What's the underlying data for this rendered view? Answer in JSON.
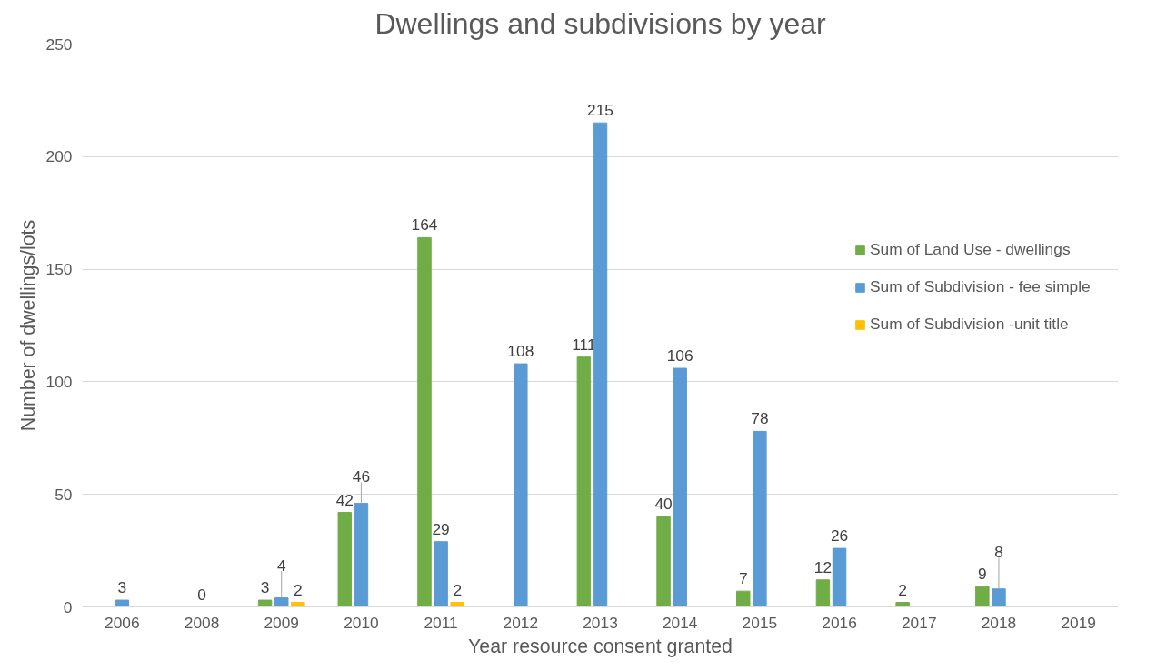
{
  "chart_data": {
    "type": "bar",
    "title": "Dwellings and subdivisions by year",
    "xlabel": "Year resource consent granted",
    "ylabel": "Number of dwellings/lots",
    "categories": [
      "2006",
      "2008",
      "2009",
      "2010",
      "2011",
      "2012",
      "2013",
      "2014",
      "2015",
      "2016",
      "2017",
      "2018",
      "2019"
    ],
    "series": [
      {
        "name": "Sum of Land Use - dwellings",
        "color": "#70ad47",
        "values": [
          null,
          null,
          3,
          42,
          164,
          null,
          111,
          40,
          7,
          12,
          2,
          9,
          null
        ],
        "value_labels": [
          null,
          null,
          "3",
          "42",
          "164",
          null,
          "111",
          "40",
          "7",
          "12",
          "2",
          "9",
          null
        ]
      },
      {
        "name": "Sum of Subdivision - fee simple",
        "color": "#5b9bd5",
        "values": [
          3,
          0,
          4,
          46,
          29,
          108,
          215,
          106,
          78,
          26,
          null,
          8,
          null
        ],
        "value_labels": [
          "3",
          "0",
          "4",
          "46",
          "29",
          "108",
          "215",
          "106",
          "78",
          "26",
          null,
          "8",
          null
        ]
      },
      {
        "name": "Sum of Subdivision -unit title",
        "color": "#ffc000",
        "values": [
          null,
          null,
          2,
          null,
          2,
          null,
          null,
          null,
          null,
          null,
          null,
          null,
          null
        ],
        "value_labels": [
          null,
          null,
          "2",
          null,
          "2",
          null,
          null,
          null,
          null,
          null,
          null,
          null,
          null
        ]
      }
    ],
    "ylim": [
      0,
      250
    ],
    "yticks": [
      0,
      50,
      100,
      150,
      200,
      250
    ],
    "grid": "y",
    "legend": "right"
  }
}
